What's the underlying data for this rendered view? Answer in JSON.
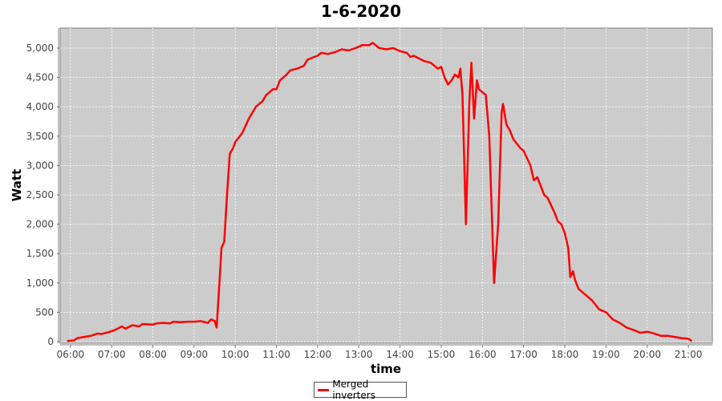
{
  "chart_data": {
    "type": "line",
    "title": "1-6-2020",
    "xlabel": "time",
    "ylabel": "Watt",
    "xlim": [
      "05:45",
      "21:35"
    ],
    "ylim": [
      0,
      5350
    ],
    "grid": true,
    "legend_position": "bottom",
    "x_ticks": [
      "06:00",
      "07:00",
      "08:00",
      "09:00",
      "10:00",
      "11:00",
      "12:00",
      "13:00",
      "14:00",
      "15:00",
      "16:00",
      "17:00",
      "18:00",
      "19:00",
      "20:00",
      "21:00"
    ],
    "y_ticks": [
      0,
      500,
      1000,
      1500,
      2000,
      2500,
      3000,
      3500,
      4000,
      4500,
      5000
    ],
    "y_tick_labels": [
      "0",
      "500",
      "1,000",
      "1,500",
      "2,000",
      "2,500",
      "3,000",
      "3,500",
      "4,000",
      "4,500",
      "5,000"
    ],
    "colors": {
      "plot_background": "#cccccc",
      "series": "#ff0000"
    },
    "series": [
      {
        "name": "Merged inverters",
        "points": [
          [
            "05:55",
            10
          ],
          [
            "06:05",
            20
          ],
          [
            "06:10",
            60
          ],
          [
            "06:20",
            80
          ],
          [
            "06:30",
            100
          ],
          [
            "06:40",
            140
          ],
          [
            "06:45",
            130
          ],
          [
            "06:55",
            160
          ],
          [
            "07:05",
            200
          ],
          [
            "07:15",
            260
          ],
          [
            "07:20",
            220
          ],
          [
            "07:30",
            280
          ],
          [
            "07:40",
            260
          ],
          [
            "07:45",
            300
          ],
          [
            "08:00",
            290
          ],
          [
            "08:05",
            310
          ],
          [
            "08:15",
            320
          ],
          [
            "08:25",
            310
          ],
          [
            "08:30",
            340
          ],
          [
            "08:40",
            330
          ],
          [
            "08:50",
            340
          ],
          [
            "09:00",
            340
          ],
          [
            "09:10",
            350
          ],
          [
            "09:20",
            320
          ],
          [
            "09:25",
            380
          ],
          [
            "09:30",
            350
          ],
          [
            "09:33",
            240
          ],
          [
            "09:37",
            1000
          ],
          [
            "09:40",
            1600
          ],
          [
            "09:44",
            1700
          ],
          [
            "09:48",
            2500
          ],
          [
            "09:52",
            3200
          ],
          [
            "09:57",
            3300
          ],
          [
            "10:00",
            3400
          ],
          [
            "10:10",
            3550
          ],
          [
            "10:20",
            3800
          ],
          [
            "10:30",
            4000
          ],
          [
            "10:40",
            4100
          ],
          [
            "10:45",
            4200
          ],
          [
            "10:55",
            4300
          ],
          [
            "11:00",
            4300
          ],
          [
            "11:05",
            4450
          ],
          [
            "11:15",
            4550
          ],
          [
            "11:20",
            4620
          ],
          [
            "11:30",
            4650
          ],
          [
            "11:40",
            4700
          ],
          [
            "11:45",
            4800
          ],
          [
            "11:55",
            4850
          ],
          [
            "12:00",
            4870
          ],
          [
            "12:05",
            4920
          ],
          [
            "12:15",
            4900
          ],
          [
            "12:25",
            4930
          ],
          [
            "12:35",
            4980
          ],
          [
            "12:45",
            4960
          ],
          [
            "12:55",
            5000
          ],
          [
            "13:05",
            5050
          ],
          [
            "13:15",
            5050
          ],
          [
            "13:20",
            5090
          ],
          [
            "13:30",
            5000
          ],
          [
            "13:40",
            4980
          ],
          [
            "13:50",
            5000
          ],
          [
            "14:00",
            4950
          ],
          [
            "14:10",
            4920
          ],
          [
            "14:15",
            4850
          ],
          [
            "14:20",
            4870
          ],
          [
            "14:35",
            4780
          ],
          [
            "14:45",
            4750
          ],
          [
            "14:55",
            4650
          ],
          [
            "15:00",
            4680
          ],
          [
            "15:05",
            4500
          ],
          [
            "15:10",
            4380
          ],
          [
            "15:15",
            4450
          ],
          [
            "15:20",
            4550
          ],
          [
            "15:25",
            4500
          ],
          [
            "15:28",
            4650
          ],
          [
            "15:31",
            4200
          ],
          [
            "15:36",
            2000
          ],
          [
            "15:41",
            4100
          ],
          [
            "15:44",
            4750
          ],
          [
            "15:48",
            3800
          ],
          [
            "15:52",
            4450
          ],
          [
            "15:55",
            4300
          ],
          [
            "16:00",
            4250
          ],
          [
            "16:05",
            4200
          ],
          [
            "16:10",
            3500
          ],
          [
            "16:17",
            1000
          ],
          [
            "16:23",
            2000
          ],
          [
            "16:28",
            3900
          ],
          [
            "16:30",
            4050
          ],
          [
            "16:35",
            3700
          ],
          [
            "16:40",
            3600
          ],
          [
            "16:45",
            3450
          ],
          [
            "16:55",
            3300
          ],
          [
            "17:00",
            3250
          ],
          [
            "17:10",
            3000
          ],
          [
            "17:15",
            2750
          ],
          [
            "17:20",
            2800
          ],
          [
            "17:25",
            2650
          ],
          [
            "17:30",
            2500
          ],
          [
            "17:35",
            2450
          ],
          [
            "17:45",
            2200
          ],
          [
            "17:50",
            2050
          ],
          [
            "17:55",
            2000
          ],
          [
            "18:00",
            1850
          ],
          [
            "18:05",
            1600
          ],
          [
            "18:08",
            1100
          ],
          [
            "18:12",
            1200
          ],
          [
            "18:15",
            1050
          ],
          [
            "18:20",
            900
          ],
          [
            "18:30",
            800
          ],
          [
            "18:40",
            700
          ],
          [
            "18:50",
            550
          ],
          [
            "19:00",
            500
          ],
          [
            "19:10",
            380
          ],
          [
            "19:20",
            320
          ],
          [
            "19:30",
            240
          ],
          [
            "19:40",
            200
          ],
          [
            "19:50",
            150
          ],
          [
            "20:00",
            170
          ],
          [
            "20:10",
            140
          ],
          [
            "20:20",
            100
          ],
          [
            "20:30",
            100
          ],
          [
            "20:40",
            80
          ],
          [
            "20:50",
            60
          ],
          [
            "21:00",
            50
          ],
          [
            "21:05",
            10
          ]
        ]
      }
    ]
  }
}
